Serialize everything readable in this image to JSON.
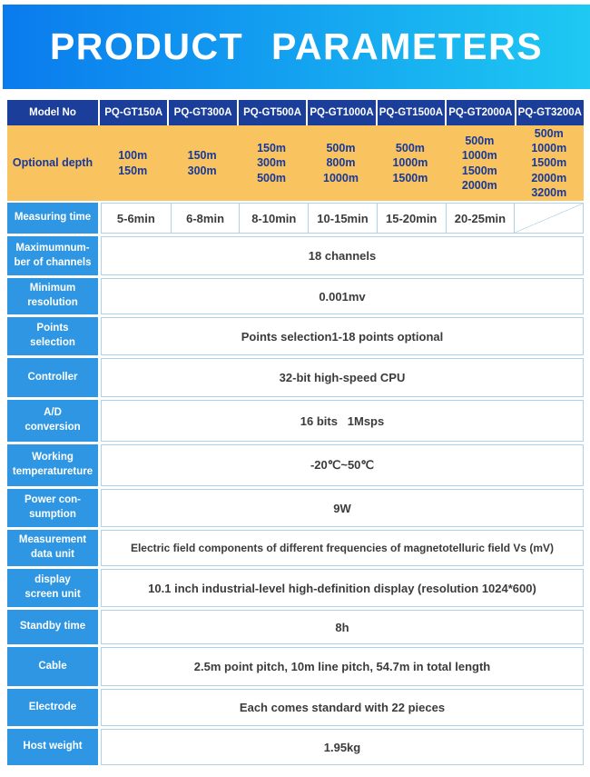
{
  "banner": {
    "title": "PRODUCT PARAMETERS"
  },
  "colors": {
    "banner_gradient_start": "#0a7bee",
    "banner_gradient_end": "#1ec9f2",
    "header_navy": "#1b3e9b",
    "depth_row_orange": "#f9c35f",
    "depth_text_navy": "#16399a",
    "label_blue": "#2e96e3",
    "cell_border_blue": "#aed3e8",
    "value_text": "#3b3b3b"
  },
  "table": {
    "model_row": {
      "label": "Model No",
      "models": [
        "PQ-GT150A",
        "PQ-GT300A",
        "PQ-GT500A",
        "PQ-GT1000A",
        "PQ-GT1500A",
        "PQ-GT2000A",
        "PQ-GT3200A"
      ]
    },
    "depth_row": {
      "label": "Optional depth",
      "values": [
        "100m\n150m",
        "150m\n300m",
        "150m\n300m\n500m",
        "500m\n800m\n1000m",
        "500m\n1000m\n1500m",
        "500m\n1000m\n1500m\n2000m",
        "500m\n1000m\n1500m\n2000m\n3200m"
      ]
    },
    "time_row": {
      "label": "Measuring time",
      "values": [
        "5-6min",
        "6-8min",
        "8-10min",
        "10-15min",
        "15-20min",
        "20-25min"
      ],
      "last_cell": "not-applicable-diagonal"
    },
    "spec_rows": [
      {
        "label": "Maximumnum-\nber of channels",
        "value": "18 channels"
      },
      {
        "label": "Minimum\nresolution",
        "value": "0.001mv"
      },
      {
        "label": "Points\nselection",
        "value": "Points selection1-18 points optional"
      },
      {
        "label": "Controller",
        "value": "32-bit high-speed CPU"
      },
      {
        "label": "A/D\nconversion",
        "value": "16 bits   1Msps"
      },
      {
        "label": "Working\ntemperatureture",
        "value": "-20℃~50℃"
      },
      {
        "label": "Power con-\nsumption",
        "value": "9W"
      },
      {
        "label": "Measurement\ndata unit",
        "value": "Electric field components of different frequencies of magnetotelluric field Vs (mV)"
      },
      {
        "label": "display\nscreen unit",
        "value": "10.1 inch industrial-level high-definition display (resolution 1024*600)"
      },
      {
        "label": "Standby time",
        "value": "8h"
      },
      {
        "label": "Cable",
        "value": "2.5m point pitch, 10m line pitch, 54.7m in total length"
      },
      {
        "label": "Electrode",
        "value": "Each comes standard with 22 pieces"
      },
      {
        "label": "Host weight",
        "value": "1.95kg"
      }
    ]
  }
}
